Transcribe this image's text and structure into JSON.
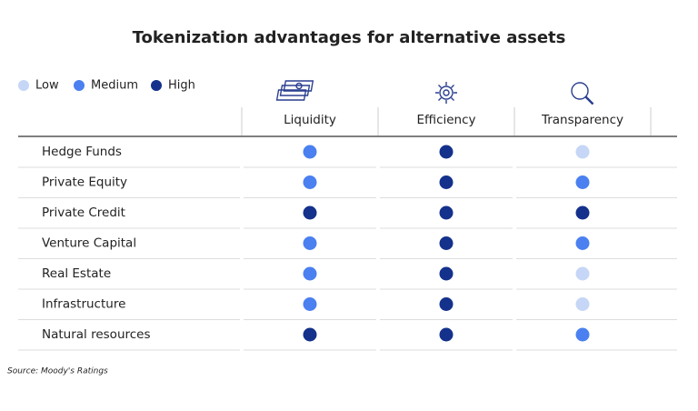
{
  "title": "Tokenization advantages for alternative assets",
  "legend": [
    {
      "label": "Low",
      "color": "#c6d6f6"
    },
    {
      "label": "Medium",
      "color": "#4a80f0"
    },
    {
      "label": "High",
      "color": "#14318c"
    }
  ],
  "columns": [
    "Liquidity",
    "Efficiency",
    "Transparency"
  ],
  "rows": [
    {
      "label": "Hedge Funds",
      "levels": [
        "Medium",
        "High",
        "Low"
      ]
    },
    {
      "label": "Private Equity",
      "levels": [
        "Medium",
        "High",
        "Medium"
      ]
    },
    {
      "label": "Private Credit",
      "levels": [
        "High",
        "High",
        "High"
      ]
    },
    {
      "label": "Venture Capital",
      "levels": [
        "Medium",
        "High",
        "Medium"
      ]
    },
    {
      "label": "Real Estate",
      "levels": [
        "Medium",
        "High",
        "Low"
      ]
    },
    {
      "label": "Infrastructure",
      "levels": [
        "Medium",
        "High",
        "Low"
      ]
    },
    {
      "label": "Natural resources",
      "levels": [
        "High",
        "High",
        "Medium"
      ]
    }
  ],
  "source": "Source: Moody's Ratings"
}
